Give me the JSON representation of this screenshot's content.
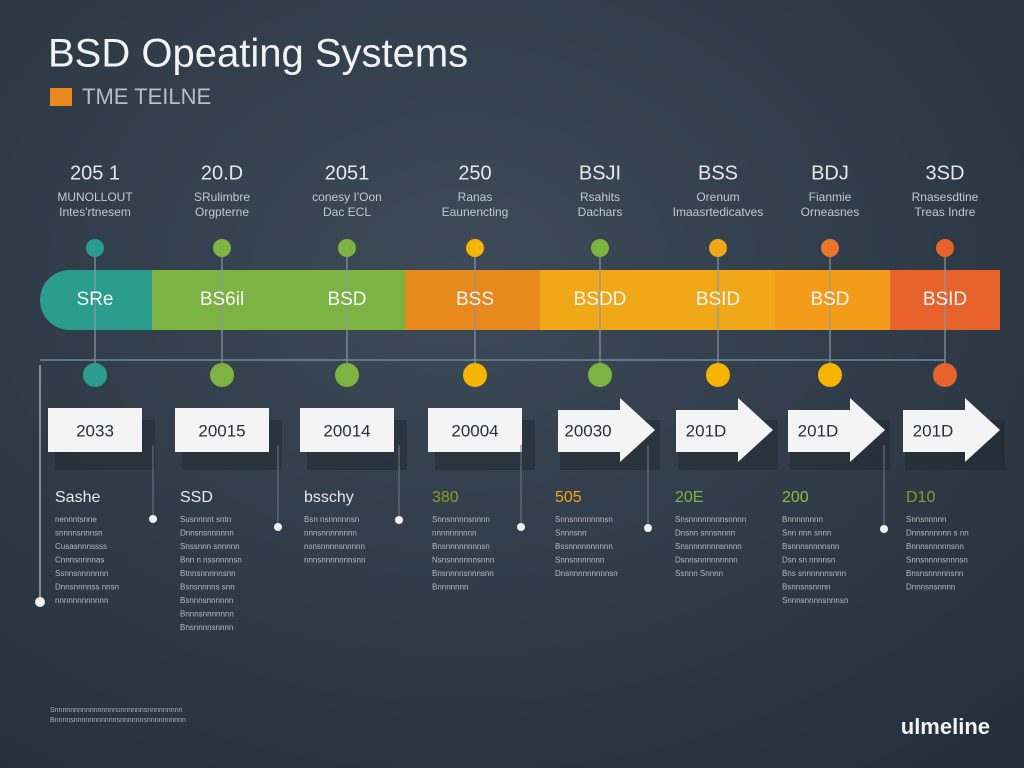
{
  "header": {
    "title": "BSD Opeating Systems",
    "subtitle": "TME TEILNE"
  },
  "columns": [
    {
      "year": "205 1",
      "lines": [
        "MUNOLLOUT",
        "Intes'rtnesem"
      ],
      "band": "SRe",
      "box": "2033",
      "heading": "Sashe",
      "body": [
        "nennntsnne",
        "snnnnsnnnsn",
        "Cusasnnnssss",
        "Cnnnsnnnnas",
        "Ssnnsnnnnnnn",
        "Dnnsnnnnss nnsn",
        "nnnnnnnnnnnn"
      ]
    },
    {
      "year": "20.D",
      "lines": [
        "SRulimbre",
        "Orgpterne"
      ],
      "band": "BS6il",
      "box": "20015",
      "heading": "SSD",
      "body": [
        "Susnnnnt sntn",
        "Dnnsnsnnnnnn",
        "Snssnnn snnnnn",
        "Bnn n nssnnnnsn",
        "Btnnsnnnnnsnn",
        "Bsnsnnnns snn",
        "Bsnnnsnnnnnn",
        "Bnnnsnnnnnnn",
        "Bnsnnnnsnnnn"
      ]
    },
    {
      "year": "2051",
      "lines": [
        "conesy I'Oon",
        "Dac ECL"
      ],
      "band": "BSD",
      "box": "20014",
      "heading": "bsschy",
      "body": [
        "Bsn nsnnnnnsn",
        "nnnsnnnnnnnn",
        "nsnsnnnnsnnnnn",
        "nnnsnnnnnnnsnn"
      ]
    },
    {
      "year": "250",
      "lines": [
        "Ranas",
        "Eaunencting"
      ],
      "band": "BSS",
      "box": "20004",
      "heading": "380",
      "body": [
        "Snnsnnnnsnnnn",
        "nnnnnnnnnn",
        "Bnsnnnnnnnnsn",
        "Nsnsnnnnnnsnnn",
        "Bnsnnnnsnnnsnn",
        "Bnnnnnnn"
      ]
    },
    {
      "year": "BSJI",
      "lines": [
        "Rsahits",
        "Dachars"
      ],
      "band": "BSDD",
      "box": "20030",
      "heading": "505",
      "body": [
        "Snnsnnnnnnnsn",
        "Snnnsnn",
        "Bssnnnnnnnnnn",
        "Snnsnnnnnnn",
        "Dnsnnnnnnnnnsn"
      ]
    },
    {
      "year": "BSS",
      "lines": [
        "Orenum",
        "Imaasrtedicatves"
      ],
      "band": "BSID",
      "box": "201D",
      "heading": "20E",
      "body": [
        "Snsnnnnnnnnsnnnn",
        "Dnsnn snnsnnnn",
        "Snsnnnnnnnsnnnn",
        "Dsnnsnnnnnnnnn",
        "Ssnnn Snnnn"
      ]
    },
    {
      "year": "BDJ",
      "lines": [
        "Fianmie",
        "Orneasnes"
      ],
      "band": "BSD",
      "box": "201D",
      "heading": "200",
      "body": [
        "Bnnnnnnnn",
        "Snn nnn snnn",
        "Bsnnnsnnnnsnn",
        "Dsn sn nnnnsn",
        "Bns snnnnnnsnnn",
        "Bsnnsnsnnnn",
        "Snnnsnnnnsnnnsn"
      ]
    },
    {
      "year": "3SD",
      "lines": [
        "Rnasesdtine",
        "Treas Indre"
      ],
      "band": "BSID",
      "box": "201D",
      "heading": "D10",
      "body": [
        "Snnsnnnnn",
        "Dnnsnnnnnn s nn",
        "Bnnnsnnnnnsnn",
        "Snnsnnnnsnnnsn",
        "Bnsnsnnnnnsnn",
        "Dnnnsnsnnnn"
      ]
    }
  ],
  "footer": {
    "notes": [
      "Snnnnnnnnnnnnnnnnsnnnnnnsnnnnnnnnn",
      "Bnnnnsnnnnnnnnnnnsnnnnnnsnnnnnnnnnn"
    ],
    "brand": "ulmeline"
  }
}
